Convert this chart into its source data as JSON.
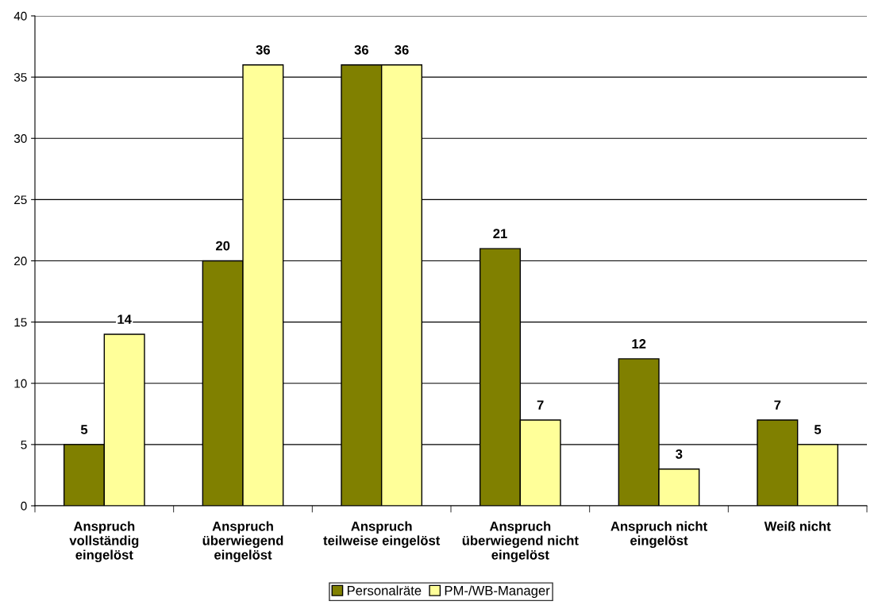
{
  "chart_data": {
    "type": "bar",
    "categories": [
      "Anspruch\nvollständig\neingelöst",
      "Anspruch\nüberwiegend\neingelöst",
      "Anspruch\nteilweise eingelöst",
      "Anspruch\nüberwiegend nicht\neingelöst",
      "Anspruch nicht\neingelöst",
      "Weiß nicht"
    ],
    "series": [
      {
        "name": "Personalräte",
        "color": "#808000",
        "values": [
          5,
          20,
          36,
          21,
          12,
          7
        ]
      },
      {
        "name": "PM-/WB-Manager",
        "color": "#ffff99",
        "values": [
          14,
          36,
          36,
          7,
          3,
          5
        ]
      }
    ],
    "ylim": [
      0,
      40
    ],
    "yticks": [
      0,
      5,
      10,
      15,
      20,
      25,
      30,
      35,
      40
    ],
    "grid": "y",
    "legend": "bottom",
    "data_labels": true
  }
}
